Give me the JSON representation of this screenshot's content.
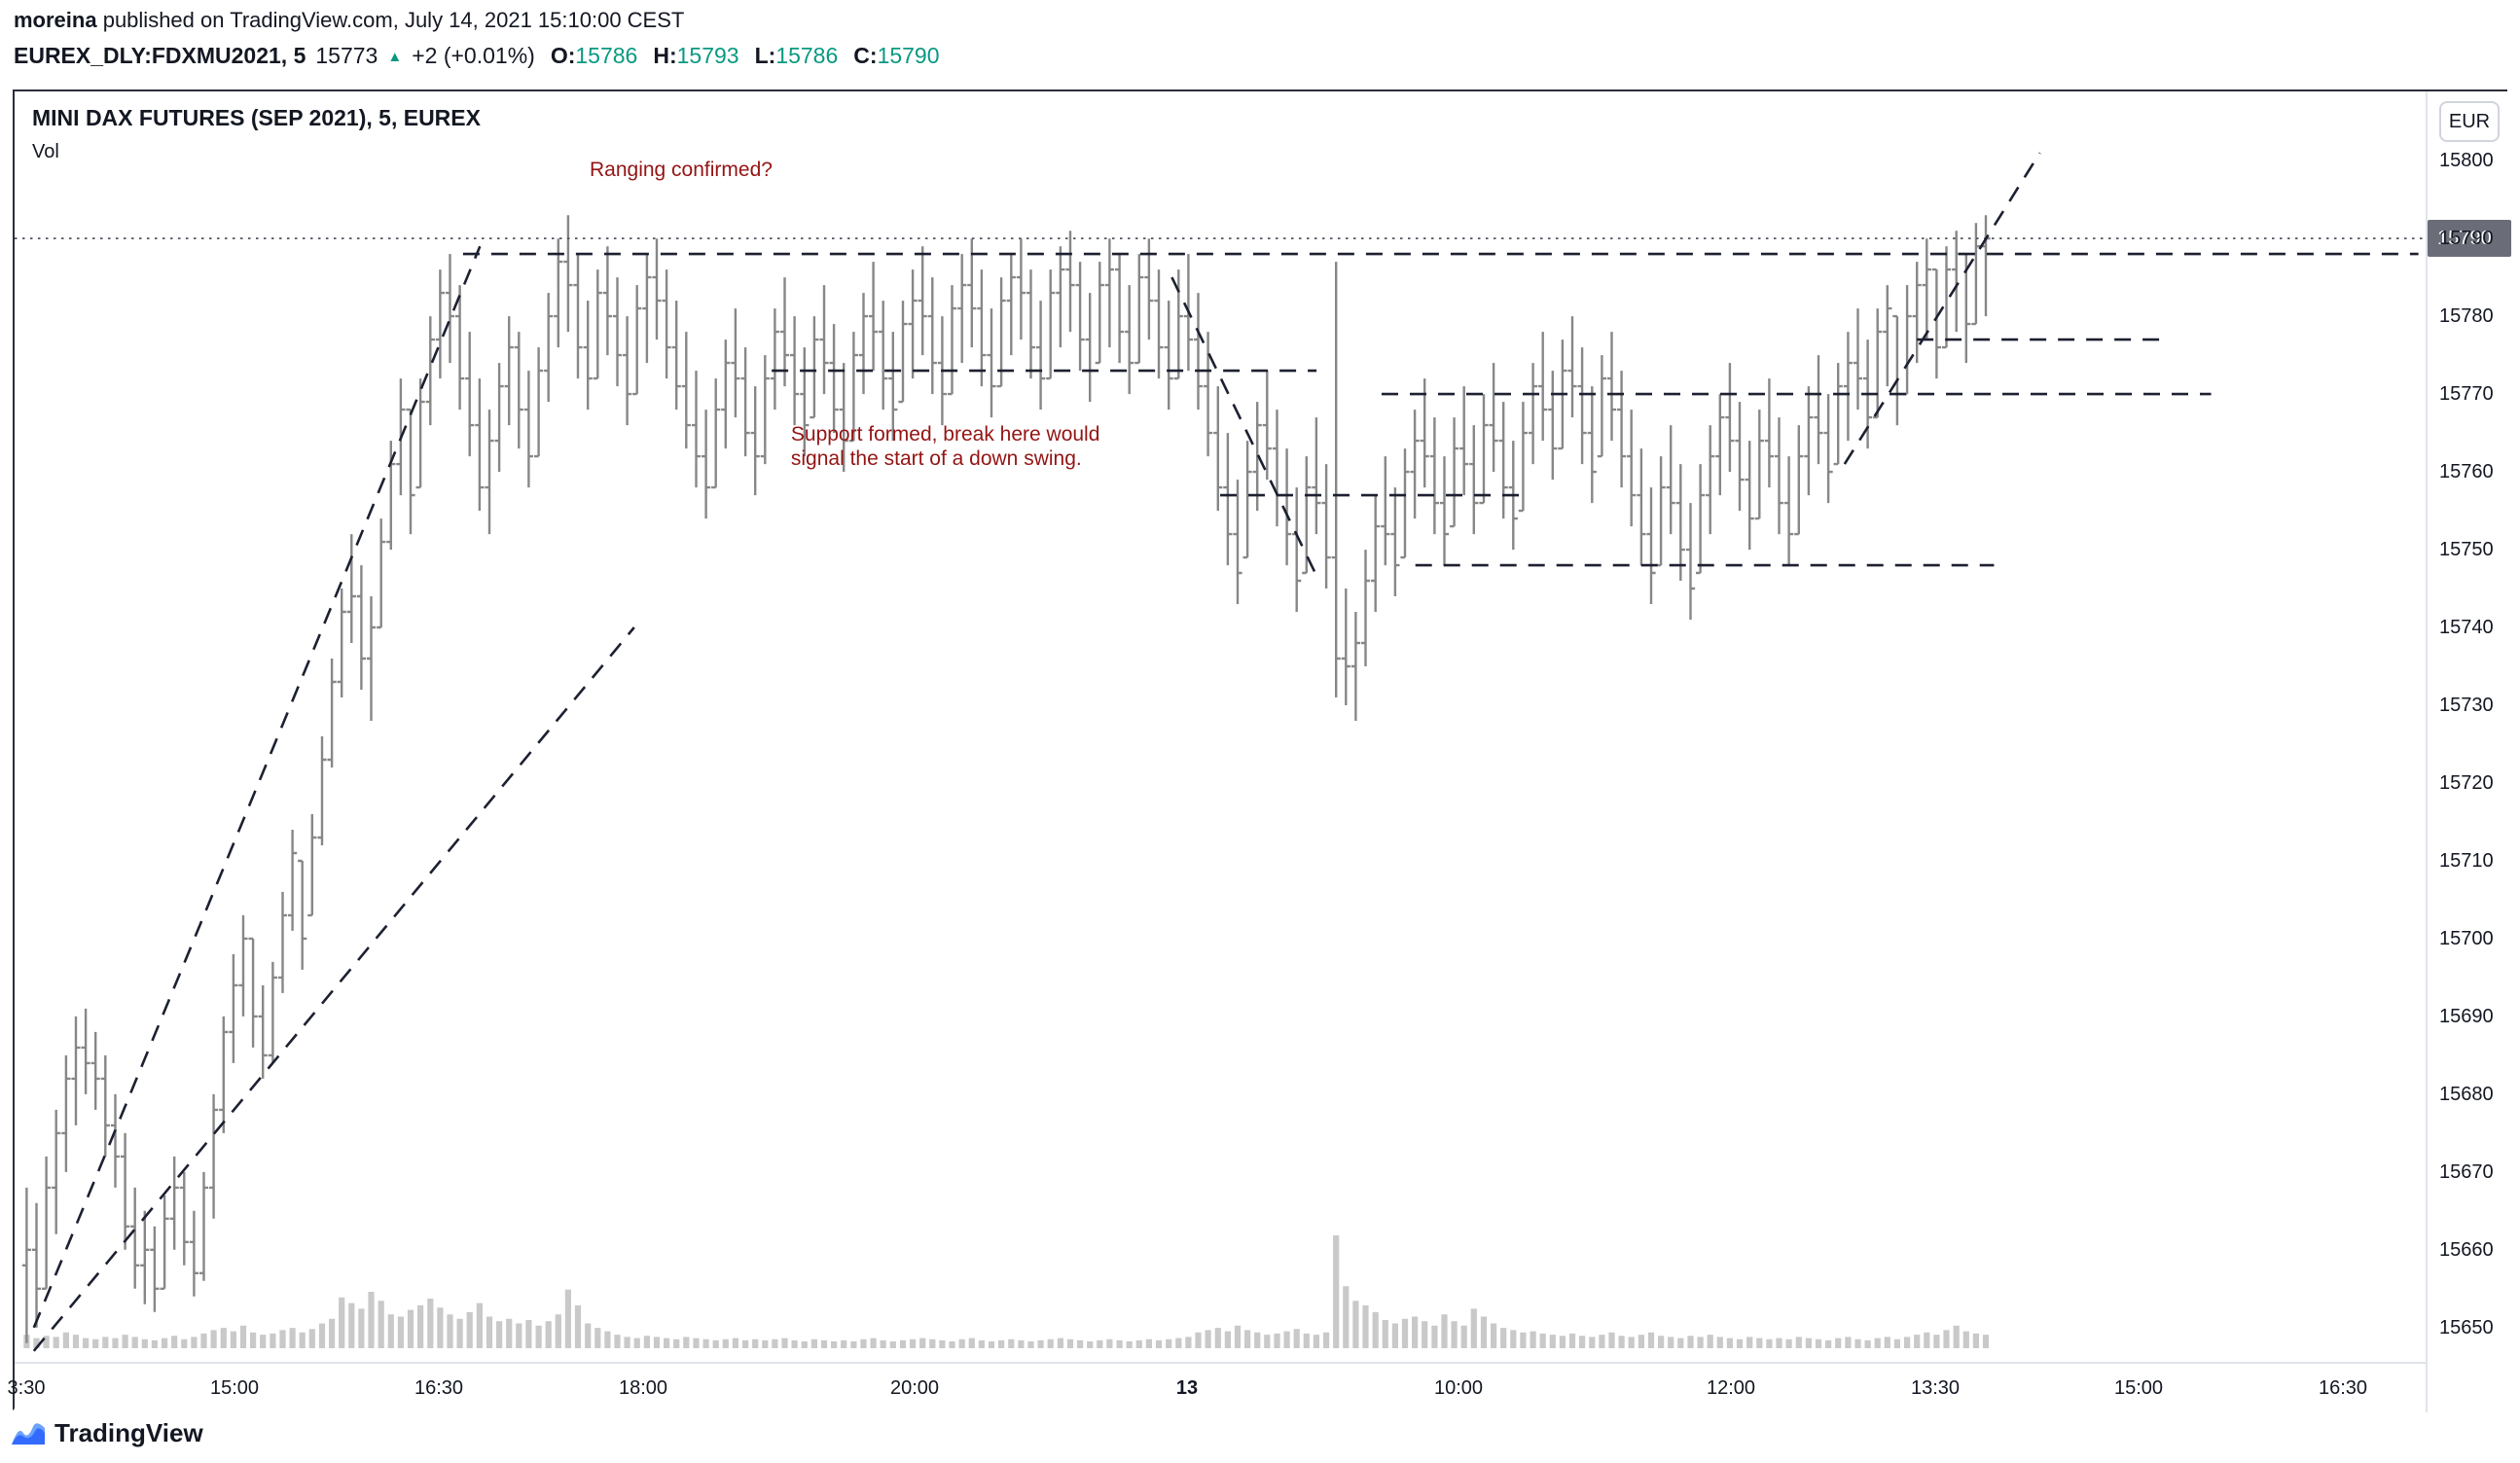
{
  "header": {
    "author": "moreina",
    "published": " published on TradingView.com, July 14, 2021 15:10:00 CEST",
    "symbol": "EUREX_DLY:FDXMU2021, 5",
    "last_price": "15773",
    "up_arrow": "▲",
    "change": "+2 (+0.01%)",
    "ohlc": [
      {
        "label": "O:",
        "value": "15786"
      },
      {
        "label": "H:",
        "value": "15793"
      },
      {
        "label": "L:",
        "value": "15786"
      },
      {
        "label": "C:",
        "value": "15790"
      }
    ]
  },
  "chart": {
    "title": "MINI DAX FUTURES (SEP 2021), 5, EUREX",
    "vol_label": "Vol",
    "currency_button": "EUR",
    "last_price_badge": "15790",
    "colors": {
      "up_teal": "#089981",
      "bar_gray": "#878787",
      "volume_gray": "#c9c9c9",
      "annotation_red": "#941414",
      "dashed_line": "#1c2030",
      "badge_bg": "#6a6d78",
      "axis_text": "#131722"
    }
  },
  "chart_data": {
    "type": "ohlc_bars_with_volume",
    "title": "MINI DAX FUTURES (SEP 2021), 5, EUREX",
    "instrument": "EUREX_DLY:FDXMU2021",
    "interval": "5",
    "grid": false,
    "current_price": 15790,
    "ylim": [
      15645.6,
      15808.9
    ],
    "price_axis": [
      15800,
      15790,
      15780,
      15770,
      15760,
      15750,
      15740,
      15730,
      15720,
      15710,
      15700,
      15690,
      15680,
      15670,
      15660,
      15650
    ],
    "time_labels": [
      {
        "t": "3:30",
        "f": 0.005
      },
      {
        "t": "15:00",
        "f": 0.0913
      },
      {
        "t": "16:30",
        "f": 0.176
      },
      {
        "t": "18:00",
        "f": 0.2606
      },
      {
        "t": "20:00",
        "f": 0.3734
      },
      {
        "t": "13",
        "f": 0.4862,
        "bold": true
      },
      {
        "t": "10:00",
        "f": 0.599
      },
      {
        "t": "12:00",
        "f": 0.7118
      },
      {
        "t": "13:30",
        "f": 0.7965
      },
      {
        "t": "15:00",
        "f": 0.8811
      },
      {
        "t": "16:30",
        "f": 0.9657
      }
    ],
    "bars_schema": [
      "high",
      "low",
      "close",
      "relative_volume_0_100"
    ],
    "bars_x_span": [
      0.005,
      0.8176
    ],
    "bars": [
      [
        15668,
        15648,
        15660,
        12
      ],
      [
        15666,
        15650,
        15655,
        9
      ],
      [
        15672,
        15655,
        15668,
        11
      ],
      [
        15678,
        15662,
        15675,
        10
      ],
      [
        15685,
        15670,
        15682,
        14
      ],
      [
        15690,
        15676,
        15686,
        12
      ],
      [
        15691,
        15680,
        15684,
        9
      ],
      [
        15688,
        15678,
        15682,
        8
      ],
      [
        15685,
        15672,
        15676,
        10
      ],
      [
        15680,
        15668,
        15672,
        9
      ],
      [
        15675,
        15660,
        15663,
        12
      ],
      [
        15668,
        15655,
        15658,
        10
      ],
      [
        15665,
        15653,
        15660,
        8
      ],
      [
        15663,
        15652,
        15655,
        7
      ],
      [
        15667,
        15655,
        15664,
        9
      ],
      [
        15672,
        15660,
        15668,
        11
      ],
      [
        15670,
        15658,
        15661,
        8
      ],
      [
        15665,
        15654,
        15657,
        10
      ],
      [
        15670,
        15656,
        15668,
        13
      ],
      [
        15680,
        15664,
        15678,
        16
      ],
      [
        15690,
        15675,
        15688,
        18
      ],
      [
        15698,
        15684,
        15694,
        15
      ],
      [
        15703,
        15690,
        15700,
        20
      ],
      [
        15700,
        15686,
        15690,
        14
      ],
      [
        15694,
        15682,
        15685,
        12
      ],
      [
        15697,
        15684,
        15695,
        13
      ],
      [
        15706,
        15693,
        15703,
        16
      ],
      [
        15714,
        15701,
        15711,
        18
      ],
      [
        15710,
        15696,
        15700,
        14
      ],
      [
        15716,
        15703,
        15713,
        17
      ],
      [
        15726,
        15712,
        15723,
        22
      ],
      [
        15736,
        15722,
        15733,
        26
      ],
      [
        15745,
        15731,
        15742,
        45
      ],
      [
        15752,
        15738,
        15744,
        40
      ],
      [
        15748,
        15732,
        15736,
        35
      ],
      [
        15744,
        15728,
        15740,
        50
      ],
      [
        15754,
        15740,
        15751,
        42
      ],
      [
        15764,
        15750,
        15761,
        30
      ],
      [
        15772,
        15757,
        15768,
        28
      ],
      [
        15768,
        15752,
        15757,
        34
      ],
      [
        15772,
        15758,
        15769,
        38
      ],
      [
        15780,
        15766,
        15777,
        44
      ],
      [
        15786,
        15772,
        15783,
        36
      ],
      [
        15788,
        15774,
        15780,
        30
      ],
      [
        15784,
        15768,
        15772,
        26
      ],
      [
        15778,
        15762,
        15766,
        32
      ],
      [
        15772,
        15755,
        15758,
        40
      ],
      [
        15768,
        15752,
        15764,
        28
      ],
      [
        15774,
        15760,
        15771,
        24
      ],
      [
        15780,
        15766,
        15776,
        26
      ],
      [
        15778,
        15763,
        15768,
        22
      ],
      [
        15773,
        15758,
        15762,
        25
      ],
      [
        15776,
        15762,
        15773,
        20
      ],
      [
        15783,
        15769,
        15780,
        24
      ],
      [
        15790,
        15776,
        15787,
        30
      ],
      [
        15793,
        15778,
        15784,
        52
      ],
      [
        15788,
        15772,
        15776,
        38
      ],
      [
        15782,
        15768,
        15772,
        22
      ],
      [
        15786,
        15772,
        15783,
        18
      ],
      [
        15789,
        15775,
        15780,
        15
      ],
      [
        15785,
        15771,
        15775,
        12
      ],
      [
        15780,
        15766,
        15770,
        10
      ],
      [
        15784,
        15770,
        15781,
        9
      ],
      [
        15788,
        15774,
        15785,
        11
      ],
      [
        15790,
        15777,
        15782,
        10
      ],
      [
        15786,
        15772,
        15776,
        9
      ],
      [
        15782,
        15768,
        15771,
        8
      ],
      [
        15778,
        15763,
        15766,
        10
      ],
      [
        15773,
        15758,
        15762,
        9
      ],
      [
        15768,
        15754,
        15758,
        8
      ],
      [
        15772,
        15758,
        15768,
        7
      ],
      [
        15777,
        15763,
        15774,
        8
      ],
      [
        15781,
        15767,
        15772,
        9
      ],
      [
        15776,
        15762,
        15765,
        7
      ],
      [
        15771,
        15757,
        15762,
        8
      ],
      [
        15775,
        15761,
        15772,
        7
      ],
      [
        15781,
        15768,
        15778,
        8
      ],
      [
        15785,
        15771,
        15775,
        9
      ],
      [
        15780,
        15766,
        15770,
        7
      ],
      [
        15776,
        15762,
        15766,
        6
      ],
      [
        15780,
        15767,
        15777,
        8
      ],
      [
        15784,
        15770,
        15774,
        7
      ],
      [
        15779,
        15765,
        15768,
        6
      ],
      [
        15774,
        15760,
        15764,
        7
      ],
      [
        15778,
        15764,
        15775,
        6
      ],
      [
        15783,
        15770,
        15780,
        8
      ],
      [
        15787,
        15773,
        15778,
        9
      ],
      [
        15782,
        15768,
        15772,
        7
      ],
      [
        15778,
        15764,
        15768,
        6
      ],
      [
        15782,
        15769,
        15779,
        7
      ],
      [
        15786,
        15772,
        15782,
        8
      ],
      [
        15789,
        15775,
        15780,
        9
      ],
      [
        15785,
        15770,
        15774,
        8
      ],
      [
        15780,
        15766,
        15770,
        7
      ],
      [
        15784,
        15770,
        15781,
        6
      ],
      [
        15788,
        15774,
        15784,
        8
      ],
      [
        15790,
        15776,
        15781,
        9
      ],
      [
        15786,
        15771,
        15775,
        7
      ],
      [
        15781,
        15767,
        15771,
        6
      ],
      [
        15785,
        15771,
        15782,
        7
      ],
      [
        15788,
        15775,
        15785,
        8
      ],
      [
        15790,
        15777,
        15783,
        7
      ],
      [
        15786,
        15772,
        15776,
        6
      ],
      [
        15782,
        15768,
        15772,
        7
      ],
      [
        15786,
        15772,
        15783,
        8
      ],
      [
        15789,
        15776,
        15786,
        9
      ],
      [
        15791,
        15778,
        15784,
        8
      ],
      [
        15787,
        15773,
        15777,
        7
      ],
      [
        15783,
        15769,
        15773,
        6
      ],
      [
        15787,
        15774,
        15784,
        7
      ],
      [
        15790,
        15776,
        15786,
        8
      ],
      [
        15788,
        15774,
        15778,
        7
      ],
      [
        15784,
        15770,
        15774,
        6
      ],
      [
        15788,
        15774,
        15785,
        7
      ],
      [
        15790,
        15777,
        15782,
        8
      ],
      [
        15786,
        15772,
        15776,
        7
      ],
      [
        15782,
        15768,
        15772,
        8
      ],
      [
        15786,
        15772,
        15780,
        9
      ],
      [
        15788,
        15773,
        15777,
        10
      ],
      [
        15783,
        15768,
        15771,
        14
      ],
      [
        15778,
        15762,
        15765,
        16
      ],
      [
        15771,
        15755,
        15758,
        18
      ],
      [
        15765,
        15748,
        15752,
        15
      ],
      [
        15759,
        15743,
        15747,
        20
      ],
      [
        15764,
        15749,
        15760,
        16
      ],
      [
        15769,
        15755,
        15766,
        14
      ],
      [
        15773,
        15759,
        15763,
        12
      ],
      [
        15768,
        15753,
        15757,
        13
      ],
      [
        15763,
        15748,
        15752,
        15
      ],
      [
        15758,
        15742,
        15746,
        17
      ],
      [
        15762,
        15747,
        15758,
        13
      ],
      [
        15767,
        15752,
        15756,
        12
      ],
      [
        15761,
        15745,
        15749,
        14
      ],
      [
        15787,
        15731,
        15736,
        100
      ],
      [
        15745,
        15730,
        15735,
        55
      ],
      [
        15742,
        15728,
        15738,
        42
      ],
      [
        15750,
        15735,
        15746,
        38
      ],
      [
        15757,
        15742,
        15753,
        32
      ],
      [
        15762,
        15748,
        15752,
        25
      ],
      [
        15758,
        15744,
        15748,
        22
      ],
      [
        15763,
        15749,
        15760,
        26
      ],
      [
        15768,
        15754,
        15764,
        28
      ],
      [
        15772,
        15758,
        15762,
        24
      ],
      [
        15767,
        15752,
        15756,
        20
      ],
      [
        15762,
        15748,
        15752,
        30
      ],
      [
        15767,
        15753,
        15763,
        24
      ],
      [
        15771,
        15757,
        15761,
        20
      ],
      [
        15766,
        15752,
        15756,
        35
      ],
      [
        15770,
        15756,
        15766,
        28
      ],
      [
        15774,
        15760,
        15764,
        22
      ],
      [
        15769,
        15754,
        15758,
        18
      ],
      [
        15764,
        15750,
        15754,
        16
      ],
      [
        15769,
        15755,
        15765,
        14
      ],
      [
        15774,
        15761,
        15771,
        15
      ],
      [
        15778,
        15764,
        15768,
        13
      ],
      [
        15773,
        15759,
        15763,
        12
      ],
      [
        15777,
        15763,
        15773,
        11
      ],
      [
        15780,
        15767,
        15771,
        13
      ],
      [
        15776,
        15761,
        15765,
        11
      ],
      [
        15771,
        15756,
        15760,
        10
      ],
      [
        15775,
        15762,
        15772,
        12
      ],
      [
        15778,
        15764,
        15768,
        14
      ],
      [
        15773,
        15758,
        15762,
        11
      ],
      [
        15768,
        15753,
        15757,
        10
      ],
      [
        15763,
        15748,
        15752,
        12
      ],
      [
        15758,
        15743,
        15747,
        14
      ],
      [
        15762,
        15748,
        15758,
        11
      ],
      [
        15766,
        15752,
        15756,
        10
      ],
      [
        15761,
        15746,
        15750,
        9
      ],
      [
        15756,
        15741,
        15745,
        11
      ],
      [
        15761,
        15747,
        15757,
        10
      ],
      [
        15766,
        15752,
        15762,
        12
      ],
      [
        15770,
        15757,
        15767,
        10
      ],
      [
        15774,
        15760,
        15764,
        9
      ],
      [
        15769,
        15755,
        15759,
        8
      ],
      [
        15764,
        15750,
        15754,
        10
      ],
      [
        15768,
        15754,
        15764,
        9
      ],
      [
        15772,
        15758,
        15762,
        8
      ],
      [
        15767,
        15752,
        15756,
        9
      ],
      [
        15762,
        15748,
        15752,
        8
      ],
      [
        15766,
        15752,
        15762,
        10
      ],
      [
        15771,
        15757,
        15767,
        9
      ],
      [
        15775,
        15761,
        15765,
        8
      ],
      [
        15770,
        15756,
        15760,
        7
      ],
      [
        15774,
        15761,
        15771,
        9
      ],
      [
        15778,
        15764,
        15774,
        10
      ],
      [
        15781,
        15768,
        15772,
        8
      ],
      [
        15777,
        15763,
        15767,
        7
      ],
      [
        15781,
        15767,
        15778,
        9
      ],
      [
        15784,
        15771,
        15781,
        10
      ],
      [
        15780,
        15766,
        15770,
        8
      ],
      [
        15784,
        15770,
        15780,
        10
      ],
      [
        15787,
        15774,
        15784,
        12
      ],
      [
        15790,
        15777,
        15786,
        14
      ],
      [
        15786,
        15772,
        15776,
        12
      ],
      [
        15789,
        15776,
        15786,
        16
      ],
      [
        15791,
        15778,
        15788,
        20
      ],
      [
        15788,
        15774,
        15779,
        15
      ],
      [
        15792,
        15779,
        15789,
        13
      ],
      [
        15793,
        15780,
        15790,
        12
      ]
    ],
    "hlines": [
      [
        15788,
        0.186,
        0.997
      ],
      [
        15773,
        0.314,
        0.54
      ],
      [
        15757,
        0.5,
        0.624
      ],
      [
        15770,
        0.567,
        0.911
      ],
      [
        15748,
        0.581,
        0.821
      ],
      [
        15777,
        0.789,
        0.892
      ]
    ],
    "trendlines": [
      [
        0.008,
        15650,
        0.193,
        15789
      ],
      [
        0.008,
        15647,
        0.257,
        15740
      ],
      [
        0.48,
        15785,
        0.541,
        15746
      ],
      [
        0.759,
        15761,
        0.84,
        15801
      ]
    ],
    "annotations": [
      {
        "x_frac": 0.2385,
        "price": 15798,
        "lines": [
          "Ranging confirmed?"
        ]
      },
      {
        "x_frac": 0.322,
        "price": 15764,
        "lines": [
          "Support formed, break here would",
          "signal the start of a down swing."
        ]
      }
    ]
  },
  "footer": {
    "brand": "TradingView"
  }
}
